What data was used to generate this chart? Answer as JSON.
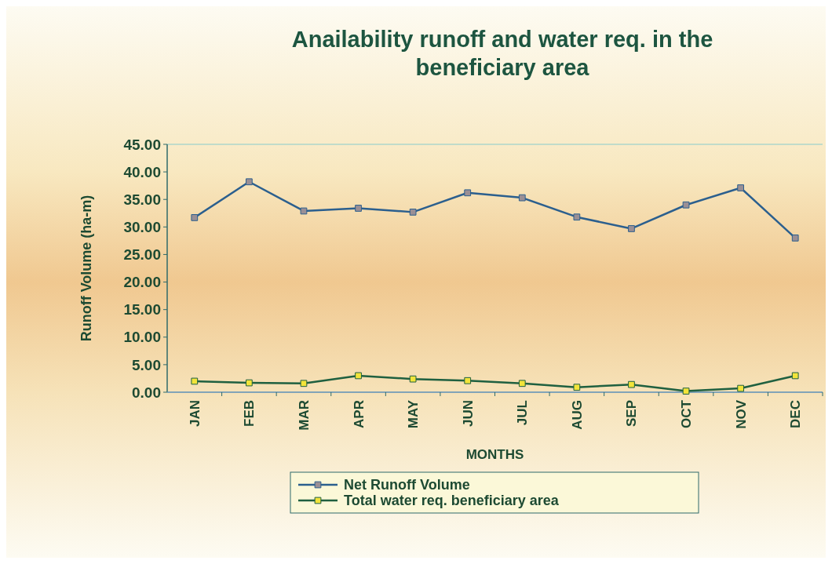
{
  "chart_data": {
    "type": "line",
    "title": "Anailability runoff and water req. in the beneficiary area",
    "xlabel": "MONTHS",
    "ylabel": "Runoff Volume (ha-m)",
    "categories": [
      "JAN",
      "FEB",
      "MAR",
      "APR",
      "MAY",
      "JUN",
      "JUL",
      "AUG",
      "SEP",
      "OCT",
      "NOV",
      "DEC"
    ],
    "series": [
      {
        "name": "Net Runoff Volume",
        "color": "#2b5f8e",
        "values": [
          31.7,
          38.2,
          32.9,
          33.4,
          32.7,
          36.2,
          35.3,
          31.8,
          29.7,
          34.0,
          37.1,
          28.0
        ]
      },
      {
        "name": "Total water req. beneficiary area",
        "color": "#1f6040",
        "values": [
          2.0,
          1.7,
          1.6,
          3.0,
          2.4,
          2.1,
          1.6,
          0.9,
          1.4,
          0.2,
          0.7,
          3.0
        ]
      }
    ],
    "ylim": [
      0,
      45
    ],
    "yticks": [
      {
        "value": 0,
        "label": "0.00"
      },
      {
        "value": 5,
        "label": "5.00"
      },
      {
        "value": 10,
        "label": "10.00"
      },
      {
        "value": 15,
        "label": "15.00"
      },
      {
        "value": 20,
        "label": "20.00"
      },
      {
        "value": 25,
        "label": "25.00"
      },
      {
        "value": 30,
        "label": "30.00"
      },
      {
        "value": 35,
        "label": "35.00"
      },
      {
        "value": 40,
        "label": "40.00"
      },
      {
        "value": 45,
        "label": "45.00"
      }
    ],
    "marker": "square",
    "line_style": "solid",
    "legend": "bottom",
    "grid": false
  }
}
